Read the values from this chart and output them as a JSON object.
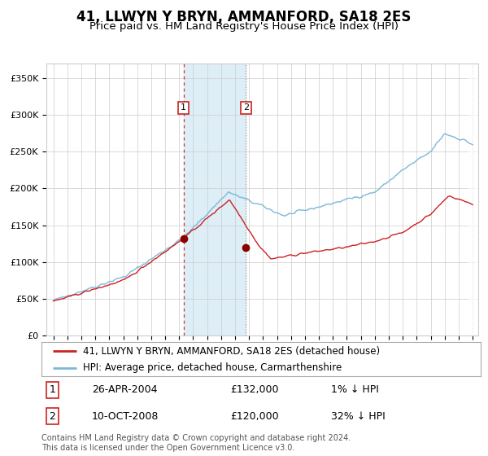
{
  "title": "41, LLWYN Y BRYN, AMMANFORD, SA18 2ES",
  "subtitle": "Price paid vs. HM Land Registry's House Price Index (HPI)",
  "ylim": [
    0,
    370000
  ],
  "yticks": [
    0,
    50000,
    100000,
    150000,
    200000,
    250000,
    300000,
    350000
  ],
  "ytick_labels": [
    "£0",
    "£50K",
    "£100K",
    "£150K",
    "£200K",
    "£250K",
    "£300K",
    "£350K"
  ],
  "x_start_year": 1995,
  "x_end_year": 2025,
  "hpi_color": "#7db8d8",
  "price_color": "#cc2222",
  "marker_color": "#880000",
  "purchase1_date": 2004.32,
  "purchase1_price": 132000,
  "purchase2_date": 2008.78,
  "purchase2_price": 120000,
  "vline1_color": "#cc3333",
  "vline2_color": "#999999",
  "shade_color": "#ddeef7",
  "legend_label1": "41, LLWYN Y BRYN, AMMANFORD, SA18 2ES (detached house)",
  "legend_label2": "HPI: Average price, detached house, Carmarthenshire",
  "annotation1_label": "1",
  "annotation2_label": "2",
  "table_row1": [
    "1",
    "26-APR-2004",
    "£132,000",
    "1% ↓ HPI"
  ],
  "table_row2": [
    "2",
    "10-OCT-2008",
    "£120,000",
    "32% ↓ HPI"
  ],
  "footer": "Contains HM Land Registry data © Crown copyright and database right 2024.\nThis data is licensed under the Open Government Licence v3.0.",
  "background_color": "#ffffff",
  "grid_color": "#cccccc",
  "title_fontsize": 12,
  "subtitle_fontsize": 9.5,
  "axis_fontsize": 8,
  "legend_fontsize": 8.5,
  "table_fontsize": 9,
  "footer_fontsize": 7
}
